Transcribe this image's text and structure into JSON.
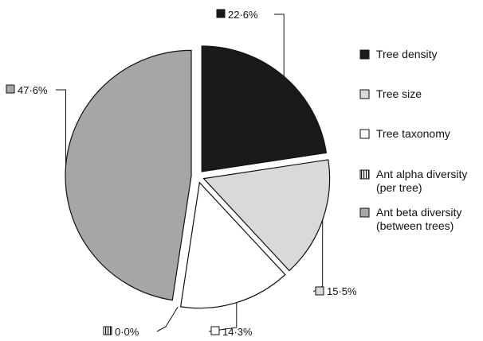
{
  "chart_data": {
    "type": "pie",
    "title": "",
    "legend_position": "right",
    "slices": [
      {
        "name": "Tree density",
        "value": 22.6,
        "label": "22·6%",
        "color": "#1a1a1a"
      },
      {
        "name": "Tree size",
        "value": 15.5,
        "label": "15·5%",
        "color": "#d9d9d9"
      },
      {
        "name": "Tree taxonomy",
        "value": 14.3,
        "label": "14·3%",
        "color": "#ffffff"
      },
      {
        "name": "Ant alpha diversity (per tree)",
        "value": 0.0,
        "label": "0·0%",
        "color": "#ffffff",
        "pattern": "vertical-stripes"
      },
      {
        "name": "Ant beta diversity (between trees)",
        "value": 47.6,
        "label": "47·6%",
        "color": "#a6a6a6"
      }
    ],
    "legend": [
      {
        "lines": [
          "Tree density"
        ]
      },
      {
        "lines": [
          "Tree size"
        ]
      },
      {
        "lines": [
          "Tree taxonomy"
        ]
      },
      {
        "lines": [
          "Ant alpha diversity",
          "(per tree)"
        ]
      },
      {
        "lines": [
          "Ant beta diversity",
          "(between trees)"
        ]
      }
    ]
  }
}
